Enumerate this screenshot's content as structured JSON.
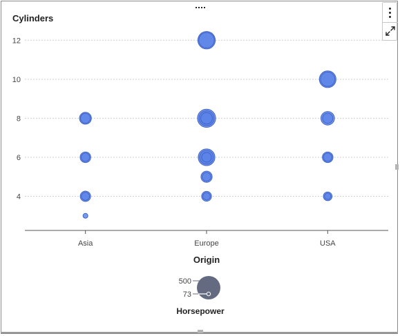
{
  "chart_data": {
    "type": "scatter",
    "subtype": "bubble",
    "ylabel": "Cylinders",
    "xlabel": "Origin",
    "categories": [
      "Asia",
      "Europe",
      "USA"
    ],
    "yticks": [
      4,
      6,
      8,
      10,
      12
    ],
    "ylim": [
      2.25,
      13
    ],
    "grid": "horizontal-dotted",
    "bubble_color": "#5b82e6",
    "bubble_edge_color": "#3f63c8",
    "size_legend": {
      "title": "Horsepower",
      "max_label": "500",
      "min_label": "73",
      "max_value": 500,
      "min_value": 73,
      "color": "#646b80"
    },
    "points": [
      {
        "x": "Asia",
        "y": 3,
        "size": 73
      },
      {
        "x": "Asia",
        "y": 4,
        "size": 160
      },
      {
        "x": "Asia",
        "y": 4,
        "size": 120
      },
      {
        "x": "Asia",
        "y": 6,
        "size": 165
      },
      {
        "x": "Asia",
        "y": 6,
        "size": 125
      },
      {
        "x": "Asia",
        "y": 8,
        "size": 190
      },
      {
        "x": "Asia",
        "y": 8,
        "size": 150
      },
      {
        "x": "Europe",
        "y": 4,
        "size": 150
      },
      {
        "x": "Europe",
        "y": 4,
        "size": 110
      },
      {
        "x": "Europe",
        "y": 5,
        "size": 175
      },
      {
        "x": "Europe",
        "y": 5,
        "size": 130
      },
      {
        "x": "Europe",
        "y": 6,
        "size": 300
      },
      {
        "x": "Europe",
        "y": 6,
        "size": 230
      },
      {
        "x": "Europe",
        "y": 6,
        "size": 150
      },
      {
        "x": "Europe",
        "y": 8,
        "size": 340
      },
      {
        "x": "Europe",
        "y": 8,
        "size": 260
      },
      {
        "x": "Europe",
        "y": 8,
        "size": 185
      },
      {
        "x": "Europe",
        "y": 12,
        "size": 320
      },
      {
        "x": "Europe",
        "y": 12,
        "size": 270
      },
      {
        "x": "USA",
        "y": 4,
        "size": 130
      },
      {
        "x": "USA",
        "y": 4,
        "size": 95
      },
      {
        "x": "USA",
        "y": 6,
        "size": 165
      },
      {
        "x": "USA",
        "y": 6,
        "size": 125
      },
      {
        "x": "USA",
        "y": 8,
        "size": 225
      },
      {
        "x": "USA",
        "y": 8,
        "size": 160
      },
      {
        "x": "USA",
        "y": 10,
        "size": 300
      },
      {
        "x": "USA",
        "y": 10,
        "size": 245
      }
    ]
  }
}
